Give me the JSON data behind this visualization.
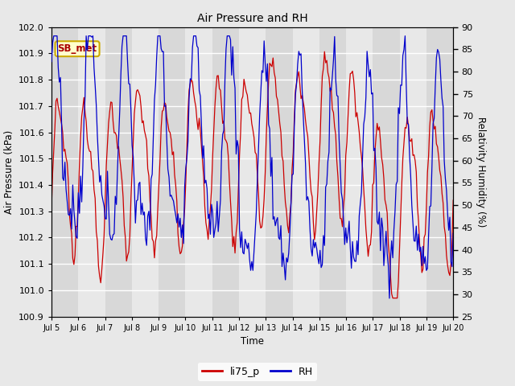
{
  "title": "Air Pressure and RH",
  "ylabel_left": "Air Pressure (kPa)",
  "ylabel_right": "Relativity Humidity (%)",
  "xlabel": "Time",
  "ylim_left": [
    100.9,
    102.0
  ],
  "ylim_right": [
    25,
    90
  ],
  "yticks_left": [
    100.9,
    101.0,
    101.1,
    101.2,
    101.3,
    101.4,
    101.5,
    101.6,
    101.7,
    101.8,
    101.9,
    102.0
  ],
  "yticks_right": [
    25,
    30,
    35,
    40,
    45,
    50,
    55,
    60,
    65,
    70,
    75,
    80,
    85,
    90
  ],
  "xtick_labels": [
    "Jul 5",
    "Jul 6",
    "Jul 7",
    "Jul 8",
    "Jul 9",
    "Jul 10",
    "Jul 11",
    "Jul 12",
    "Jul 13",
    "Jul 14",
    "Jul 15",
    "Jul 16",
    "Jul 17",
    "Jul 18",
    "Jul 19",
    "Jul 20"
  ],
  "color_pressure": "#cc0000",
  "color_rh": "#0000cc",
  "label_pressure": "li75_p",
  "label_rh": "RH",
  "annotation_text": "SB_met",
  "annotation_bg": "#ffffcc",
  "annotation_border": "#ccaa00",
  "fig_bg": "#e8e8e8",
  "plot_bg": "#f0f0f0",
  "grid_color": "#ffffff",
  "n_days": 15,
  "pts_per_day": 24,
  "band_color_even": "#d8d8d8",
  "band_color_odd": "#e8e8e8"
}
